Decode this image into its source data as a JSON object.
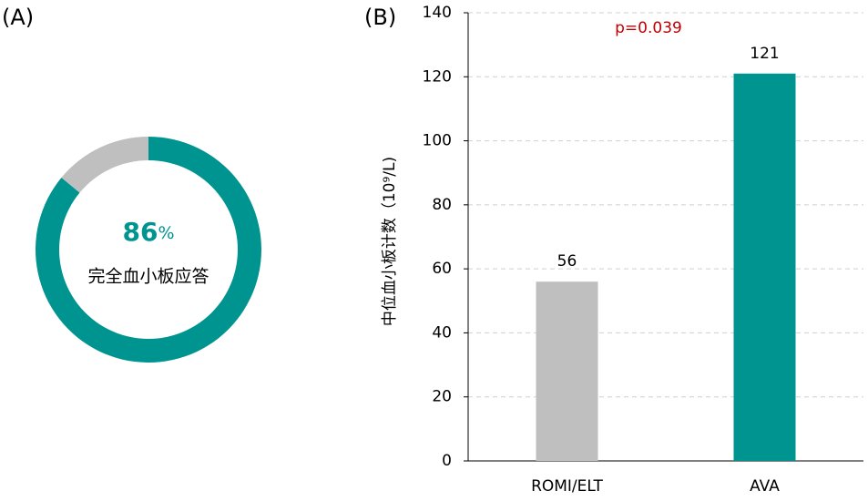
{
  "chart_data": [
    {
      "type": "donut",
      "title": "(A)",
      "values": [
        86,
        14
      ],
      "colors": [
        "#009490",
        "#bfbfbf"
      ],
      "unit": "%",
      "center_label": "完全血小板应答"
    },
    {
      "type": "bar",
      "title": "(B)",
      "categories": [
        "ROMI/ELT",
        "AVA"
      ],
      "values": [
        56,
        121
      ],
      "colors": [
        "#bfbfbf",
        "#009490"
      ],
      "y_label": "中位血小板计数（10⁹/L)",
      "annotation": "p=0.039",
      "ylim": [
        0,
        140
      ],
      "yticks": [
        0,
        20,
        40,
        60,
        80,
        100,
        120,
        140
      ],
      "grid": true
    }
  ]
}
